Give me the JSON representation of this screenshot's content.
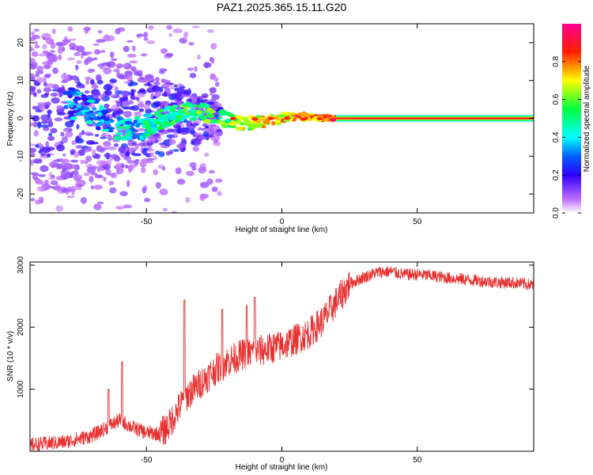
{
  "title": "PAZ1.2025.365.15.11.G20",
  "colorbar": {
    "label": "Normalized spectral amplitude",
    "ticks": [
      "0.0",
      "0.2",
      "0.4",
      "0.6",
      "0.8"
    ],
    "tick_values": [
      0.0,
      0.2,
      0.4,
      0.6,
      0.8
    ],
    "range": [
      0,
      1
    ],
    "colormap": [
      "#ffffff",
      "#b060ff",
      "#0000ff",
      "#00ffff",
      "#00ff00",
      "#ffff00",
      "#ff0000",
      "#ff00a0"
    ]
  },
  "chart_data": [
    {
      "type": "heatmap",
      "title": "",
      "xlabel": "Height of straight line (km)",
      "ylabel": "Frequency (Hz)",
      "xlim": [
        -93,
        93
      ],
      "ylim": [
        -25,
        25
      ],
      "xticks": [
        -50,
        0,
        50
      ],
      "yticks": [
        -20,
        -10,
        0,
        10,
        20
      ],
      "xtick_labels": [
        "-50",
        "0",
        "50"
      ],
      "ytick_labels": [
        "-20",
        "-10",
        "0",
        "10",
        "20"
      ],
      "description_of_ridge": {
        "centerline_frequency": 0,
        "scatter_region_x": [
          -93,
          -30
        ],
        "continuous_band_start_x": 20
      }
    },
    {
      "type": "line",
      "title": "",
      "xlabel": "Height of straight line (km)",
      "ylabel": "SNR (10 * v/v)",
      "xlim": [
        -93,
        93
      ],
      "ylim": [
        0,
        3050
      ],
      "xticks": [
        -50,
        0,
        50
      ],
      "yticks": [
        1000,
        2000,
        3000
      ],
      "xtick_labels": [
        "-50",
        "0",
        "50"
      ],
      "ytick_labels": [
        "1000",
        "2000",
        "3000"
      ],
      "color": "#e83030",
      "trend_x": [
        -93,
        -80,
        -70,
        -60,
        -55,
        -50,
        -45,
        -42,
        -38,
        -35,
        -30,
        -25,
        -20,
        -15,
        -10,
        -5,
        0,
        5,
        10,
        15,
        20,
        25,
        30,
        35,
        40,
        45,
        50,
        55,
        60,
        65,
        70,
        75,
        80,
        85,
        93
      ],
      "trend_y": [
        100,
        150,
        250,
        500,
        380,
        300,
        280,
        400,
        700,
        900,
        1100,
        1300,
        1450,
        1550,
        1600,
        1650,
        1700,
        1800,
        1900,
        2100,
        2400,
        2700,
        2800,
        2880,
        2900,
        2850,
        2850,
        2830,
        2800,
        2780,
        2760,
        2740,
        2720,
        2720,
        2680
      ],
      "noise_amplitude": 200,
      "spikes": [
        {
          "x": -59,
          "y": 1440
        },
        {
          "x": -64,
          "y": 1000
        },
        {
          "x": -36,
          "y": 2440
        },
        {
          "x": -22,
          "y": 2290
        },
        {
          "x": -10,
          "y": 2480
        },
        {
          "x": -13,
          "y": 2350
        }
      ]
    }
  ]
}
